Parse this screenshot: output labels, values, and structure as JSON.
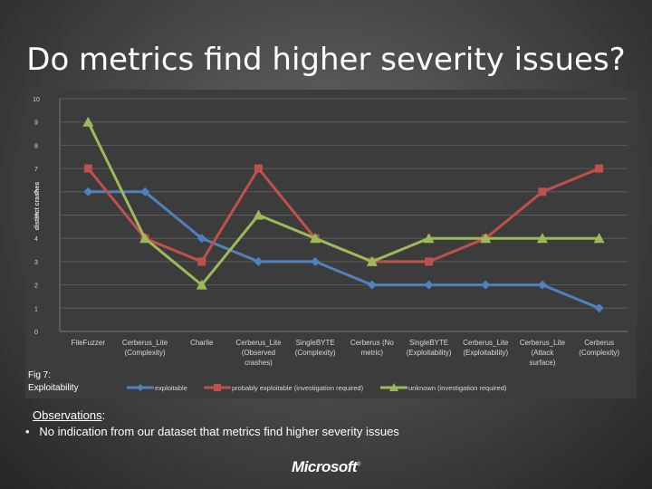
{
  "slide": {
    "title": "Do metrics find higher severity issues?",
    "fig_caption_line1": "Fig 7:",
    "fig_caption_line2": "Exploitability",
    "observations_heading": "Observations",
    "observations_colon": ":",
    "bullet_char": "•",
    "observations_bullet": "No indication from our dataset that metrics find higher severity issues",
    "logo_text": "Microsoft",
    "logo_mark": "®"
  },
  "chart_data": {
    "type": "line",
    "title": "",
    "xlabel": "",
    "ylabel": "distinct crashes",
    "ylim": [
      0,
      10
    ],
    "yticks": [
      0,
      1,
      2,
      3,
      4,
      5,
      6,
      7,
      8,
      9,
      10
    ],
    "grid": true,
    "legend_position": "bottom",
    "categories": [
      [
        "FileFuzzer"
      ],
      [
        "Cerberus_Lite",
        "(Complexity)"
      ],
      [
        "Charlie"
      ],
      [
        "Cerberus_Lite",
        "(Observed",
        "crashes)"
      ],
      [
        "SingleBYTE",
        "(Complexity)"
      ],
      [
        "Cerberus (No",
        "metric)"
      ],
      [
        "SingleBYTE",
        "(Exploitability)"
      ],
      [
        "Cerberus_Lite",
        "(Exploitability)"
      ],
      [
        "Cerberus_Lite",
        "(Attack",
        "surface)"
      ],
      [
        "Cerberus",
        "(Complexity)"
      ]
    ],
    "series": [
      {
        "name": "exploitable",
        "color": "#4f81bd",
        "marker": "diamond",
        "values": [
          6,
          6,
          4,
          3,
          3,
          2,
          2,
          2,
          2,
          1
        ]
      },
      {
        "name": "probably exploitable (investigation required)",
        "color": "#c0504d",
        "marker": "square",
        "values": [
          7,
          4,
          3,
          7,
          4,
          3,
          3,
          4,
          6,
          7
        ]
      },
      {
        "name": "unknown (investigation required)",
        "color": "#9bbb59",
        "marker": "triangle",
        "values": [
          9,
          4,
          2,
          5,
          4,
          3,
          4,
          4,
          4,
          4
        ]
      }
    ]
  }
}
